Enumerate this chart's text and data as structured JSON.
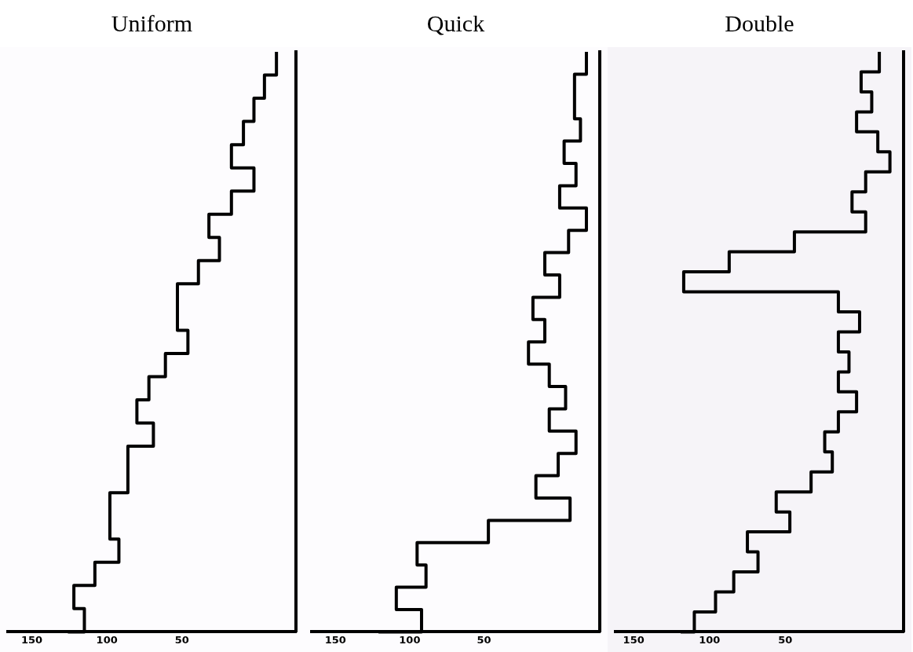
{
  "chart_data": [
    {
      "type": "step",
      "title": "Uniform",
      "orientation": "horizontal",
      "tick_labels": "x",
      "xlim": [
        166,
        -26
      ],
      "xticks": [
        150,
        100,
        50
      ],
      "categories": [
        null,
        null,
        null,
        null,
        null,
        null,
        null,
        null,
        null,
        null,
        null,
        null,
        null,
        null,
        null,
        null,
        null,
        null,
        null,
        null,
        null,
        null,
        null,
        null,
        null,
        null
      ],
      "series": [
        {
          "color": "#000000",
          "values": [
            -13,
            -5,
            2,
            9,
            17,
            2,
            17,
            32,
            25,
            39,
            53,
            53,
            46,
            61,
            72,
            80,
            69,
            86,
            86,
            98,
            98,
            92,
            108,
            122,
            115,
            126
          ]
        }
      ]
    },
    {
      "type": "step",
      "title": "Quick",
      "orientation": "horizontal",
      "tick_labels": "x",
      "xlim": [
        166,
        -28
      ],
      "xticks": [
        150,
        100,
        50
      ],
      "categories": [
        null,
        null,
        null,
        null,
        null,
        null,
        null,
        null,
        null,
        null,
        null,
        null,
        null,
        null,
        null,
        null,
        null,
        null,
        null,
        null,
        null,
        null,
        null,
        null,
        null,
        null,
        null
      ],
      "series": [
        {
          "color": "#000000",
          "values": [
            -19,
            -11,
            -11,
            -15,
            -4,
            -12,
            -1,
            -19,
            -7,
            9,
            -1,
            17,
            9,
            20,
            6,
            -5,
            6,
            -12,
            0,
            15,
            -8,
            47,
            95,
            89,
            109,
            92,
            121
          ]
        }
      ]
    },
    {
      "type": "step",
      "title": "Double",
      "orientation": "horizontal",
      "tick_labels": "x",
      "xlim": [
        162,
        -28
      ],
      "xticks": [
        150,
        100,
        50
      ],
      "categories": [
        null,
        null,
        null,
        null,
        null,
        null,
        null,
        null,
        null,
        null,
        null,
        null,
        null,
        null,
        null,
        null,
        null,
        null,
        null,
        null,
        null,
        null,
        null,
        null,
        null,
        null,
        null,
        null,
        null,
        null
      ],
      "series": [
        {
          "color": "#000000",
          "values": [
            -12,
            0,
            -7,
            3,
            -11,
            -19,
            -3,
            6,
            -3,
            44,
            87,
            117,
            15,
            1,
            15,
            8,
            15,
            3,
            15,
            24,
            19,
            33,
            56,
            47,
            75,
            68,
            84,
            96,
            110,
            119
          ]
        }
      ]
    }
  ]
}
